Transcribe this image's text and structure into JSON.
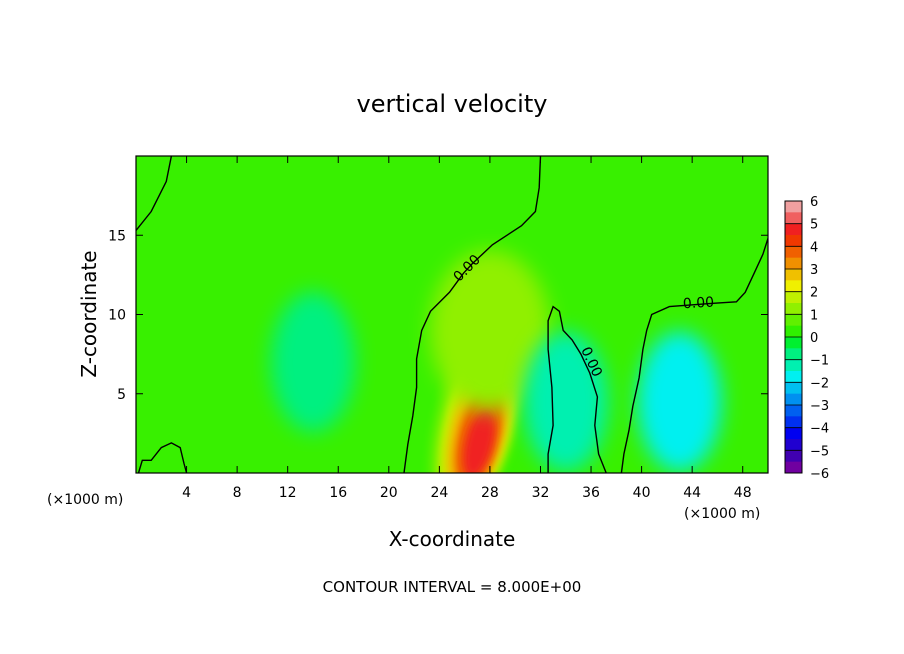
{
  "chart_data": {
    "type": "heatmap",
    "title": "vertical velocity",
    "xlabel": "X-coordinate",
    "ylabel": "Z-coordinate",
    "x_unit": "(×1000 m)",
    "y_unit": "(×1000 m)",
    "xlim": [
      0,
      50
    ],
    "ylim": [
      0,
      20
    ],
    "x_ticks": [
      4,
      8,
      12,
      16,
      20,
      24,
      28,
      32,
      36,
      40,
      44,
      48
    ],
    "y_ticks": [
      5,
      10,
      15
    ],
    "contour_label": "0.00",
    "footer": "CONTOUR INTERVAL = 8.000E+00",
    "colorbar": {
      "ticks": [
        6,
        5,
        4,
        3,
        2,
        1,
        0,
        -1,
        -2,
        -3,
        -4,
        -5,
        -6
      ],
      "range": [
        -6,
        6
      ],
      "colors": [
        {
          "value": 5.75,
          "color": "#f0a0a0"
        },
        {
          "value": 5.25,
          "color": "#f06060"
        },
        {
          "value": 4.75,
          "color": "#f02020"
        },
        {
          "value": 4.25,
          "color": "#f03800"
        },
        {
          "value": 3.75,
          "color": "#f06000"
        },
        {
          "value": 3.25,
          "color": "#f09000"
        },
        {
          "value": 2.75,
          "color": "#f0c000"
        },
        {
          "value": 2.25,
          "color": "#f0f000"
        },
        {
          "value": 1.75,
          "color": "#c0f000"
        },
        {
          "value": 1.25,
          "color": "#90f000"
        },
        {
          "value": 0.75,
          "color": "#60f000"
        },
        {
          "value": 0.25,
          "color": "#30f000"
        },
        {
          "value": -0.25,
          "color": "#00f030"
        },
        {
          "value": -0.75,
          "color": "#00f080"
        },
        {
          "value": -1.25,
          "color": "#00f0b0"
        },
        {
          "value": -1.75,
          "color": "#00f0f0"
        },
        {
          "value": -2.25,
          "color": "#00c0f0"
        },
        {
          "value": -2.75,
          "color": "#0090f0"
        },
        {
          "value": -3.25,
          "color": "#0060f0"
        },
        {
          "value": -3.75,
          "color": "#0030f0"
        },
        {
          "value": -4.25,
          "color": "#0000f0"
        },
        {
          "value": -4.75,
          "color": "#2000d0"
        },
        {
          "value": -5.25,
          "color": "#4000b0"
        },
        {
          "value": -5.75,
          "color": "#7000a0"
        }
      ]
    },
    "features": [
      {
        "kind": "updraft",
        "x": 27,
        "z": 3.5,
        "peak": 4.5
      },
      {
        "kind": "weak-updraft",
        "x": 28,
        "z": 9,
        "peak": 1
      },
      {
        "kind": "downdraft",
        "x": 43,
        "z": 4.5,
        "peak": -1.6
      },
      {
        "kind": "downdraft",
        "x": 34,
        "z": 4.5,
        "peak": -1.2
      },
      {
        "kind": "downdraft",
        "x": 14,
        "z": 7,
        "peak": -0.6
      }
    ],
    "zero_contours": [
      {
        "points": [
          [
            0,
            15.3
          ],
          [
            1.2,
            16.5
          ],
          [
            2.4,
            18.4
          ],
          [
            2.8,
            20
          ]
        ]
      },
      {
        "points": [
          [
            21.2,
            0
          ],
          [
            21.5,
            1.8
          ],
          [
            21.9,
            3.6
          ],
          [
            22.2,
            5.4
          ],
          [
            22.2,
            7.2
          ],
          [
            22.6,
            9
          ],
          [
            23.3,
            10.2
          ],
          [
            24.8,
            11.4
          ],
          [
            25.9,
            12.6
          ],
          [
            26.6,
            13.2
          ],
          [
            28.2,
            14.4
          ],
          [
            30.5,
            15.6
          ],
          [
            31.6,
            16.5
          ],
          [
            31.9,
            18
          ],
          [
            32.0,
            20
          ]
        ]
      },
      {
        "points": [
          [
            0.2,
            0
          ],
          [
            0.5,
            0.8
          ],
          [
            1.2,
            0.8
          ],
          [
            2,
            1.6
          ],
          [
            2.8,
            1.9
          ],
          [
            3.5,
            1.6
          ],
          [
            3.8,
            0.6
          ],
          [
            4,
            0
          ]
        ]
      },
      {
        "points": [
          [
            32.6,
            0
          ],
          [
            32.6,
            1.2
          ],
          [
            33.0,
            3
          ],
          [
            32.9,
            5.4
          ],
          [
            32.6,
            7.8
          ],
          [
            32.6,
            9.6
          ],
          [
            33.0,
            10.5
          ],
          [
            33.5,
            10.2
          ],
          [
            33.8,
            9
          ],
          [
            34.5,
            8.4
          ],
          [
            35.2,
            7.5
          ],
          [
            35.9,
            6.3
          ],
          [
            36.5,
            4.8
          ],
          [
            36.3,
            3
          ],
          [
            36.6,
            1.2
          ],
          [
            37.2,
            0
          ]
        ]
      },
      {
        "points": [
          [
            38.4,
            0
          ],
          [
            38.6,
            1.2
          ],
          [
            39.0,
            2.7
          ],
          [
            39.3,
            4.2
          ],
          [
            39.8,
            6
          ],
          [
            40.1,
            7.8
          ],
          [
            40.4,
            9
          ],
          [
            40.8,
            10
          ],
          [
            42.2,
            10.5
          ],
          [
            45.5,
            10.7
          ],
          [
            47.5,
            10.8
          ],
          [
            48.2,
            11.4
          ],
          [
            48.9,
            12.6
          ],
          [
            49.6,
            13.8
          ],
          [
            50,
            14.8
          ]
        ]
      }
    ]
  }
}
